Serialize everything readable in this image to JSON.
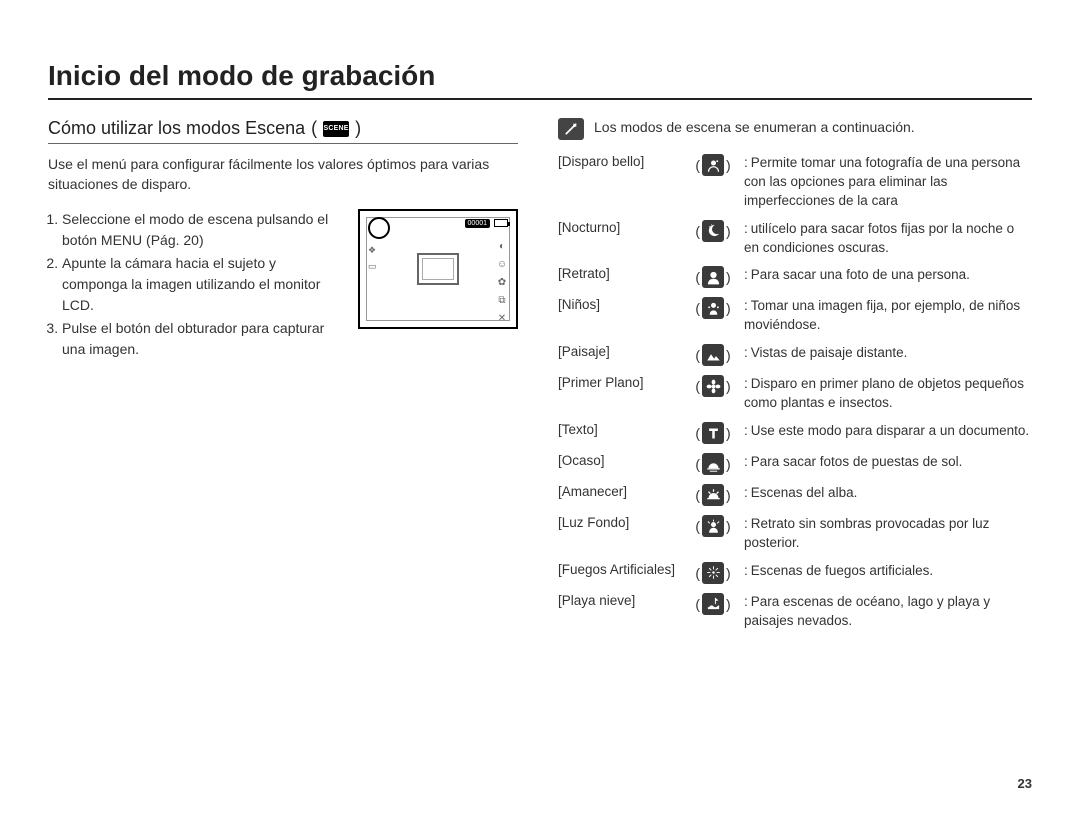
{
  "page": {
    "title": "Inicio del modo de grabación",
    "number": "23"
  },
  "left": {
    "subtitle": "Cómo utilizar los modos Escena",
    "scene_badge": "SCENE",
    "intro": "Use el menú para configurar fácilmente los valores óptimos para varias situaciones de disparo.",
    "steps": [
      "Seleccione el modo de escena pulsando el botón MENU (Pág. 20)",
      "Apunte la cámara hacia el sujeto y componga la imagen utilizando el monitor LCD.",
      "Pulse el botón del obturador para capturar una imagen."
    ],
    "lcd": {
      "counter": "00001"
    }
  },
  "right": {
    "note": "Los modos de escena se enumeran a continuación.",
    "modes": [
      {
        "label": "[Disparo bello]",
        "icon": "beauty",
        "desc": "Permite tomar una fotografía de una persona con las opciones para eliminar las imperfecciones de la cara"
      },
      {
        "label": "[Nocturno]",
        "icon": "night",
        "desc": "utilícelo para sacar fotos fijas por la noche o en condiciones oscuras."
      },
      {
        "label": "[Retrato]",
        "icon": "portrait",
        "desc": "Para sacar una foto de una persona."
      },
      {
        "label": "[Niños]",
        "icon": "children",
        "desc": "Tomar una imagen fija, por ejemplo, de niños moviéndose."
      },
      {
        "label": "[Paisaje]",
        "icon": "landscape",
        "desc": "Vistas de paisaje distante."
      },
      {
        "label": "[Primer Plano]",
        "icon": "closeup",
        "desc": "Disparo en primer plano de objetos pequeños como plantas e insectos."
      },
      {
        "label": "[Texto]",
        "icon": "text",
        "desc": "Use este modo para disparar a un documento."
      },
      {
        "label": "[Ocaso]",
        "icon": "sunset",
        "desc": "Para sacar fotos de puestas de sol."
      },
      {
        "label": "[Amanecer]",
        "icon": "dawn",
        "desc": "Escenas del alba."
      },
      {
        "label": "[Luz Fondo]",
        "icon": "backlight",
        "desc": "Retrato sin sombras provocadas por luz posterior."
      },
      {
        "label": "[Fuegos Artificiales]",
        "icon": "fireworks",
        "desc": "Escenas de fuegos artificiales."
      },
      {
        "label": "[Playa nieve]",
        "icon": "beachsnow",
        "desc": "Para escenas de océano, lago y playa y paisajes nevados."
      }
    ]
  },
  "colors": {
    "icon_bg": "#3a3a3a",
    "icon_fg": "#ffffff",
    "text": "#333333",
    "border": "#222222"
  }
}
